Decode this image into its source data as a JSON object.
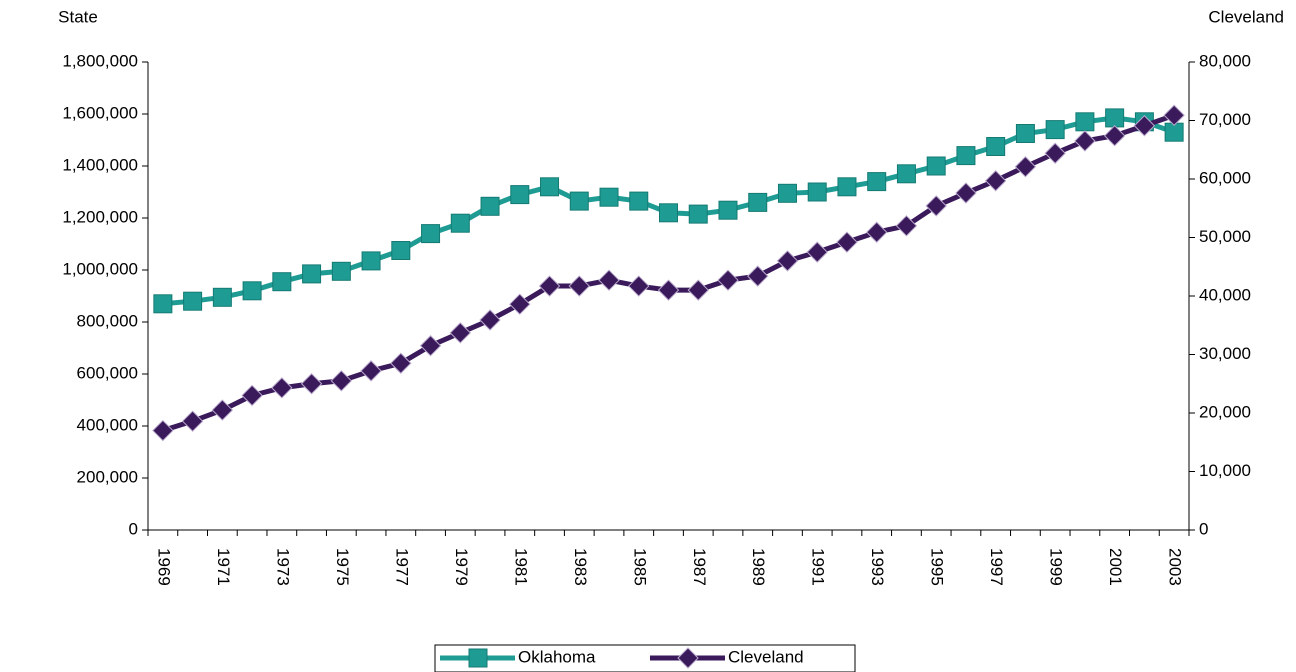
{
  "chart_data": {
    "type": "line",
    "y_axis_title": "State",
    "y2_axis_title": "Cleveland",
    "categories": [
      "1969",
      null,
      "1971",
      null,
      "1973",
      null,
      "1975",
      null,
      "1977",
      null,
      "1979",
      null,
      "1981",
      null,
      "1983",
      null,
      "1985",
      null,
      "1987",
      null,
      "1989",
      null,
      "1991",
      null,
      "1993",
      null,
      "1995",
      null,
      "1997",
      null,
      "1999",
      null,
      "2001",
      null,
      "2003"
    ],
    "ylim": [
      0,
      1800000
    ],
    "yticks": [
      0,
      {
        "value": 200000,
        "label": "200,000"
      },
      {
        "value": 400000,
        "label": "400,000"
      },
      {
        "value": 600000,
        "label": "600,000"
      },
      {
        "value": 800000,
        "label": "800,000"
      },
      {
        "value": 1000000,
        "label": "1,000,000"
      },
      {
        "value": 1200000,
        "label": "1,200,000"
      },
      {
        "value": 1400000,
        "label": "1,400,000"
      },
      {
        "value": 1600000,
        "label": "1,600,000"
      },
      {
        "value": 1800000,
        "label": "1,800,000"
      }
    ],
    "y2lim": [
      0,
      80000
    ],
    "y2ticks": [
      0,
      {
        "value": 10000,
        "label": "10,000"
      },
      {
        "value": 20000,
        "label": "20,000"
      },
      {
        "value": 30000,
        "label": "30,000"
      },
      {
        "value": 40000,
        "label": "40,000"
      },
      {
        "value": 50000,
        "label": "50,000"
      },
      {
        "value": 60000,
        "label": "60,000"
      },
      {
        "value": 70000,
        "label": "70,000"
      },
      {
        "value": 80000,
        "label": "80,000"
      }
    ],
    "grid": false,
    "legend": "bottom",
    "series": [
      {
        "name": "Oklahoma",
        "color": "#1e9c94",
        "marker": "square",
        "axis": "y",
        "values": [
          870000,
          880000,
          895000,
          920000,
          955000,
          985000,
          995000,
          1035000,
          1075000,
          1140000,
          1180000,
          1245000,
          1290000,
          1320000,
          1265000,
          1280000,
          1265000,
          1220000,
          1215000,
          1230000,
          1260000,
          1295000,
          1300000,
          1320000,
          1340000,
          1370000,
          1400000,
          1440000,
          1475000,
          1525000,
          1540000,
          1570000,
          1585000,
          1570000,
          1530000
        ]
      },
      {
        "name": "Cleveland",
        "color": "#3b1a5c",
        "marker": "diamond",
        "axis": "y2",
        "values": [
          17000,
          18600,
          20500,
          23000,
          24300,
          25000,
          25500,
          27200,
          28500,
          31500,
          33700,
          35900,
          38600,
          41700,
          41700,
          42700,
          41700,
          41000,
          41000,
          42700,
          43400,
          46000,
          47500,
          49200,
          50900,
          52000,
          55400,
          57600,
          59700,
          62100,
          64400,
          66500,
          67400,
          69100,
          70900
        ]
      }
    ]
  }
}
